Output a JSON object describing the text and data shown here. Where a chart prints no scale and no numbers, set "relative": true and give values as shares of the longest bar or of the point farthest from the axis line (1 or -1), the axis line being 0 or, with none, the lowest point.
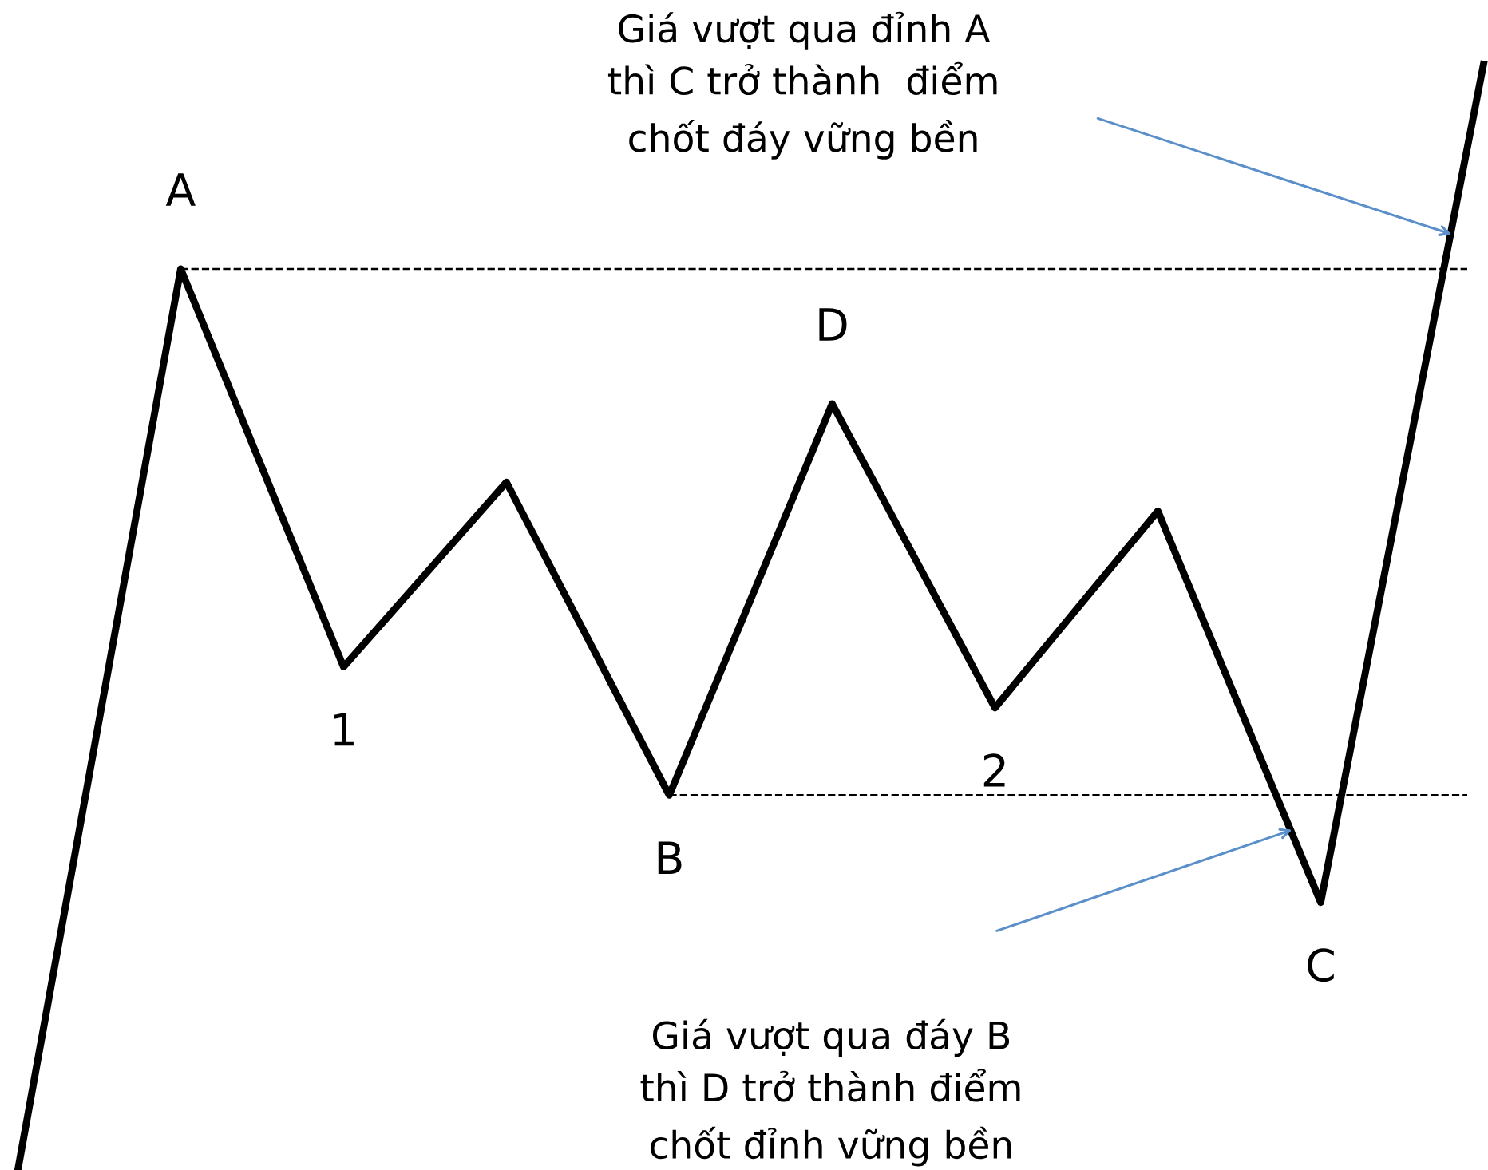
{
  "chart_data": {
    "type": "line",
    "relative": true,
    "categories": [
      null,
      null,
      null,
      null,
      null,
      null,
      null,
      null,
      null,
      null
    ],
    "series": [
      {
        "color": "#000000",
        "values": [
          0,
          0.815,
          0.455,
          0.622,
          0.339,
          0.693,
          0.418,
          0.596,
          0.242,
          1
        ]
      }
    ],
    "line_style": "solid",
    "marker": "none",
    "legend": false,
    "ref_lines": [
      {
        "axis": "y",
        "value": 0.815,
        "color": "#000000",
        "line_style": "dashed"
      },
      {
        "axis": "y",
        "value": 0.339,
        "color": "#000000",
        "line_style": "dashed"
      }
    ],
    "annotations": [
      {
        "text": "A",
        "y": 0.815
      },
      {
        "text": "1",
        "y": 0.455
      },
      {
        "text": "B",
        "y": 0.339
      },
      {
        "text": "D",
        "y": 0.693
      },
      {
        "text": "2",
        "y": 0.418
      },
      {
        "text": "C",
        "y": 0.242
      },
      "Giá vượt qua đỉnh A\nthì C trở thành  điểm\nchốt đáy vững bền",
      "Giá vượt qua đáy B\nthì D trở thành điểm\nchốt đỉnh vững bền"
    ]
  }
}
